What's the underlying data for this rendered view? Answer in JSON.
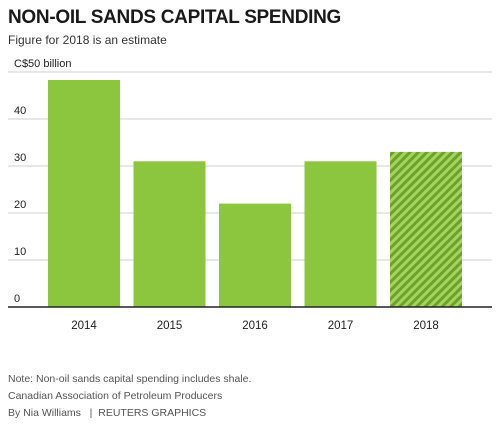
{
  "header": {
    "title": "NON-OIL SANDS CAPITAL SPENDING",
    "subtitle": "Figure for 2018 is an estimate"
  },
  "footer": {
    "note": "Note: Non-oil sands capital spending includes shale.",
    "source": "Canadian Association of Petroleum Producers",
    "byline": "By Nia Williams",
    "credit": "REUTERS GRAPHICS"
  },
  "colors": {
    "bar": "#8cc63f",
    "estimate_stripe_dark": "#6ba32a",
    "estimate_stripe_light": "#a6d35f",
    "gridline": "#cfcfcf",
    "baseline": "#222222"
  },
  "chart_data": {
    "type": "bar",
    "title": "NON-OIL SANDS CAPITAL SPENDING",
    "subtitle": "Figure for 2018 is an estimate",
    "ylabel": "C$50 billion",
    "categories": [
      "2014",
      "2015",
      "2016",
      "2017",
      "2018"
    ],
    "values": [
      48.3,
      31,
      22,
      31,
      33
    ],
    "estimate": [
      false,
      false,
      false,
      false,
      true
    ],
    "ylim": [
      0,
      50
    ],
    "yticks": [
      {
        "value": 0,
        "label": "0"
      },
      {
        "value": 10,
        "label": "10"
      },
      {
        "value": 20,
        "label": "20"
      },
      {
        "value": 30,
        "label": "30"
      },
      {
        "value": 40,
        "label": "40"
      },
      {
        "value": 50,
        "label": "C$50 billion"
      }
    ],
    "grid": true,
    "legend": "none"
  }
}
